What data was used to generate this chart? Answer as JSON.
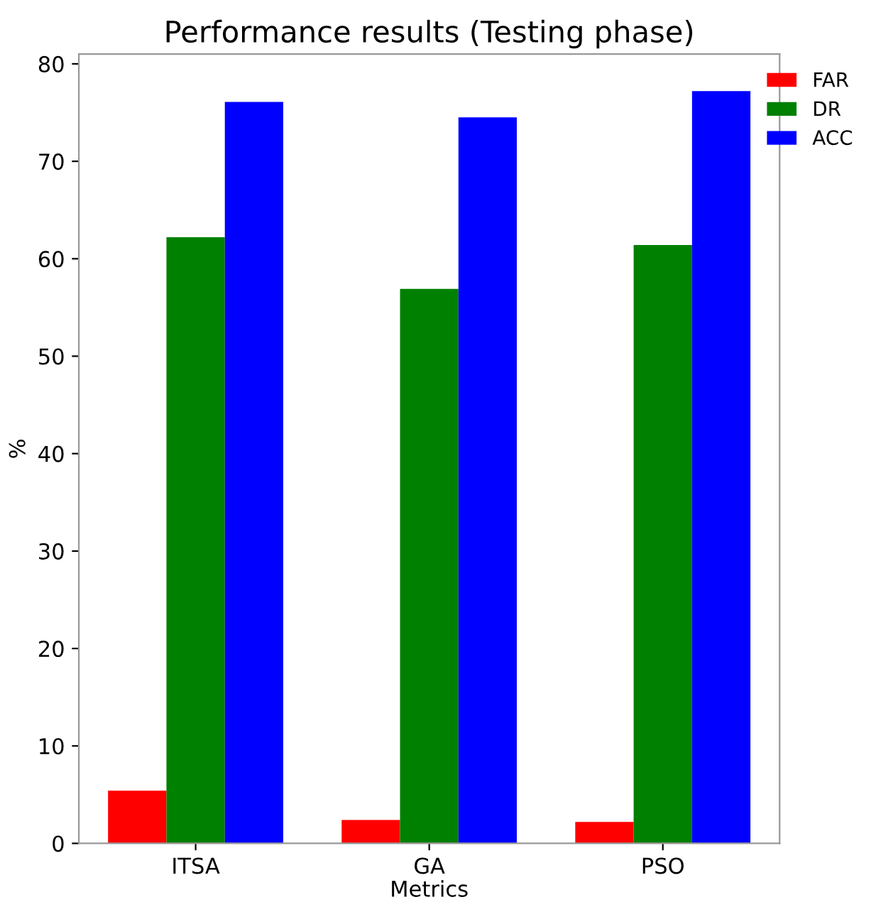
{
  "chart_data": {
    "type": "bar",
    "title": "Performance results (Testing phase)",
    "xlabel": "Metrics",
    "ylabel": "%",
    "categories": [
      "ITSA",
      "GA",
      "PSO"
    ],
    "series": [
      {
        "name": "FAR",
        "color": "#ff0000",
        "values": [
          5.4,
          2.4,
          2.2
        ]
      },
      {
        "name": "DR",
        "color": "#008000",
        "values": [
          62.2,
          56.9,
          61.4
        ]
      },
      {
        "name": "ACC",
        "color": "#0000ff",
        "values": [
          76.1,
          74.5,
          77.2
        ]
      }
    ],
    "ylim": [
      0,
      81
    ],
    "yticks": [
      0,
      10,
      20,
      30,
      40,
      50,
      60,
      70,
      80
    ],
    "grid": false,
    "legend": "top right"
  }
}
